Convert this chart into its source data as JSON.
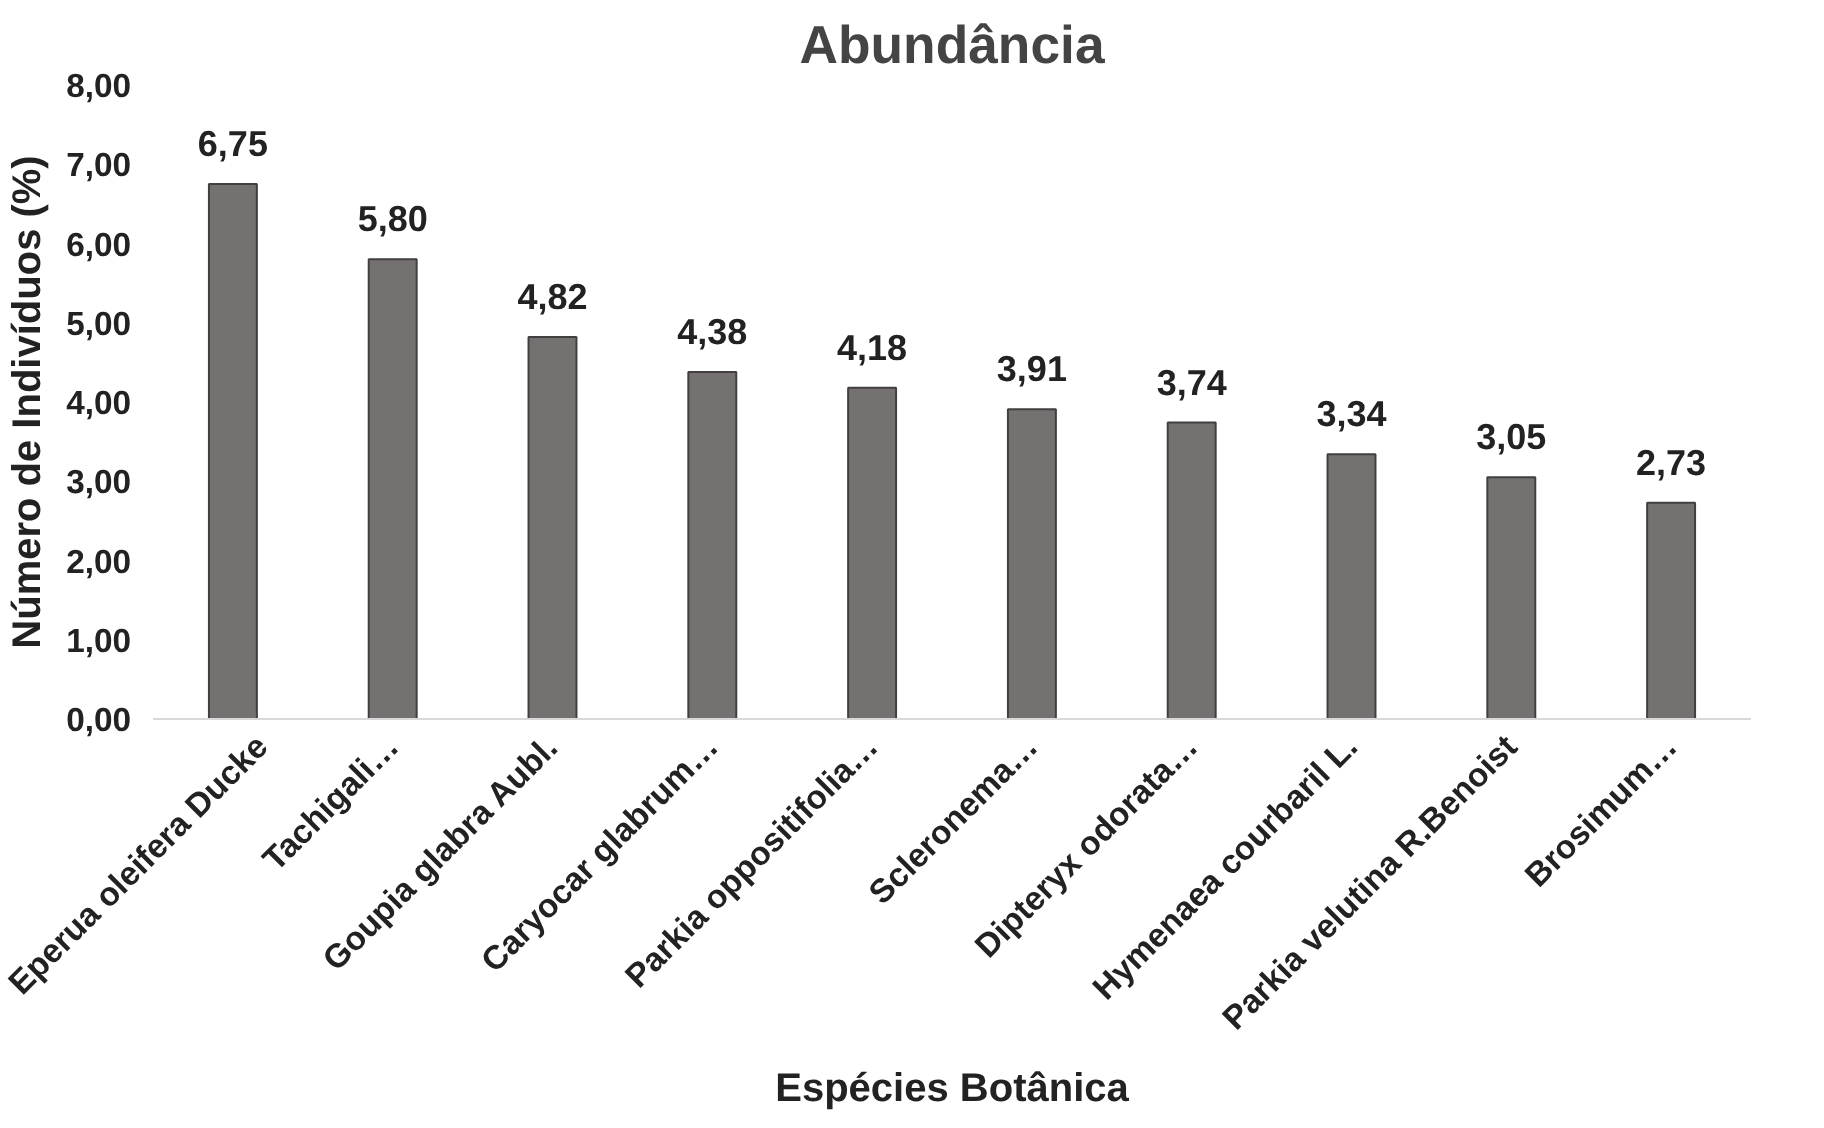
{
  "chart_data": {
    "type": "bar",
    "title": "Abundância",
    "xlabel": "Espécies Botânica",
    "ylabel": "Número de Indivíduos (%)",
    "categories": [
      "Eperua oleifera Ducke",
      "Tachigali…",
      "Goupia glabra Aubl.",
      "Caryocar glabrum…",
      "Parkia oppositifolia…",
      "Scleronema…",
      "Dipteryx odorata…",
      "Hymenaea courbaril L.",
      "Parkia velutina R.Benoist",
      "Brosimum…"
    ],
    "values": [
      6.75,
      5.8,
      4.82,
      4.38,
      4.18,
      3.91,
      3.74,
      3.34,
      3.05,
      2.73
    ],
    "value_labels": [
      "6,75",
      "5,80",
      "4,82",
      "4,38",
      "4,18",
      "3,91",
      "3,74",
      "3,34",
      "3,05",
      "2,73"
    ],
    "color": "#767171",
    "ylim": [
      0,
      8
    ],
    "yticks": [
      {
        "value": 0,
        "label": "0,00"
      },
      {
        "value": 1,
        "label": "1,00"
      },
      {
        "value": 2,
        "label": "2,00"
      },
      {
        "value": 3,
        "label": "3,00"
      },
      {
        "value": 4,
        "label": "4,00"
      },
      {
        "value": 5,
        "label": "5,00"
      },
      {
        "value": 6,
        "label": "6,00"
      },
      {
        "value": 7,
        "label": "7,00"
      },
      {
        "value": 8,
        "label": "8,00"
      }
    ],
    "grid": false
  }
}
